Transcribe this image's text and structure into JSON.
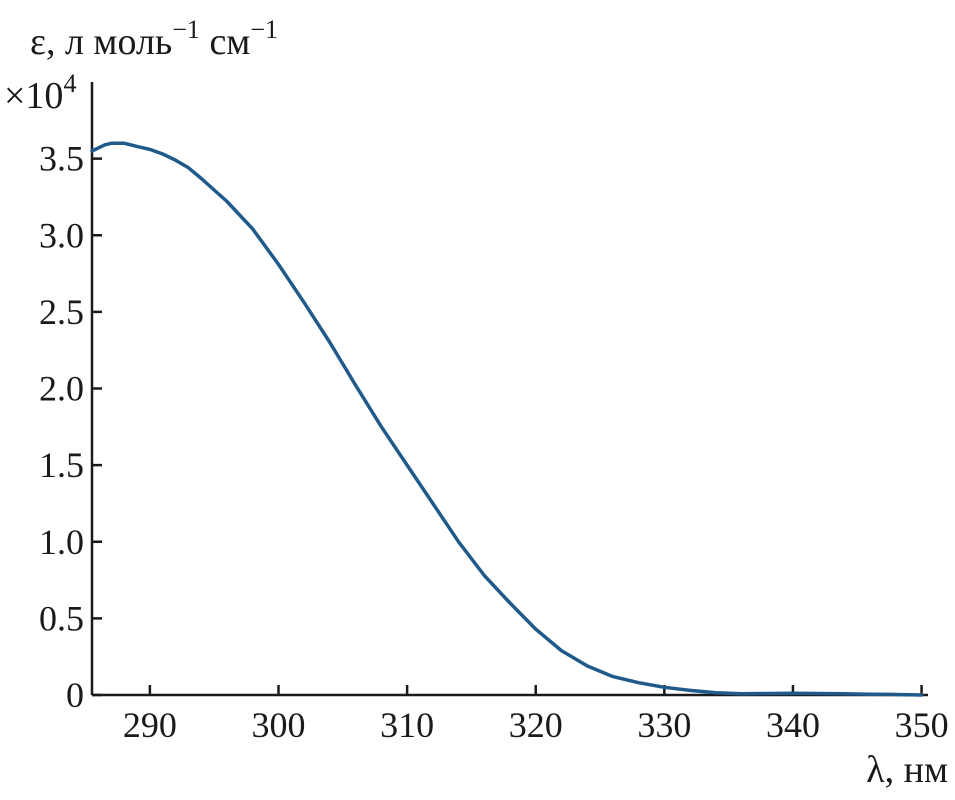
{
  "chart_data": {
    "type": "line",
    "title": "",
    "ylabel": "ε, л моль",
    "ylabel_sup1": "−1",
    "ylabel_mid": " см",
    "ylabel_sup2": "−1",
    "y_multiplier": "×10",
    "y_multiplier_exp": "4",
    "xlabel": "λ, нм",
    "xlim": [
      285.5,
      350.5
    ],
    "ylim": [
      0,
      4.0
    ],
    "x_ticks": [
      290,
      300,
      310,
      320,
      330,
      340,
      350
    ],
    "y_ticks": [
      0,
      0.5,
      1.0,
      1.5,
      2.0,
      2.5,
      3.0,
      3.5
    ],
    "y_tick_labels": [
      "0",
      "0.5",
      "1.0",
      "1.5",
      "2.0",
      "2.5",
      "3.0",
      "3.5"
    ],
    "grid": false,
    "series": [
      {
        "color": "#1f5a8a",
        "x": [
          285.5,
          286.5,
          287.0,
          288.0,
          289.0,
          290.0,
          291.0,
          292.0,
          293.0,
          294.0,
          296.0,
          298.0,
          300.0,
          302.0,
          304.0,
          306.0,
          308.0,
          310.0,
          312.0,
          314.0,
          316.0,
          318.0,
          320.0,
          322.0,
          324.0,
          326.0,
          328.0,
          330.0,
          332.0,
          334.0,
          336.0,
          338.0,
          340.0,
          342.0,
          344.0,
          346.0,
          348.0,
          350.0
        ],
        "y": [
          3.55,
          3.59,
          3.6,
          3.6,
          3.58,
          3.56,
          3.53,
          3.49,
          3.44,
          3.37,
          3.22,
          3.04,
          2.81,
          2.56,
          2.3,
          2.02,
          1.75,
          1.5,
          1.25,
          1.0,
          0.78,
          0.6,
          0.43,
          0.29,
          0.19,
          0.12,
          0.08,
          0.05,
          0.03,
          0.015,
          0.008,
          0.01,
          0.012,
          0.01,
          0.008,
          0.005,
          0.003,
          0.0
        ]
      }
    ]
  }
}
